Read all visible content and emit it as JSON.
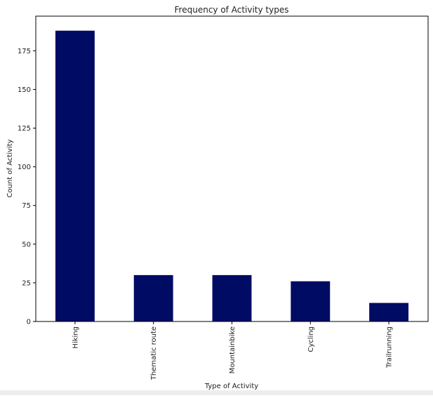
{
  "chart_data": {
    "type": "bar",
    "title": "Frequency of Activity types",
    "xlabel": "Type of Activity",
    "ylabel": "Count of Activity",
    "categories": [
      "Hiking",
      "Thematic route",
      "Mountainbike",
      "Cycling",
      "Trailrunning"
    ],
    "values": [
      188,
      30,
      30,
      26,
      12
    ],
    "yticks": [
      0,
      25,
      50,
      75,
      100,
      125,
      150,
      175
    ],
    "ylim": [
      0,
      197.4
    ],
    "bar_color": "#000b64",
    "grid": false,
    "legend": "none"
  }
}
